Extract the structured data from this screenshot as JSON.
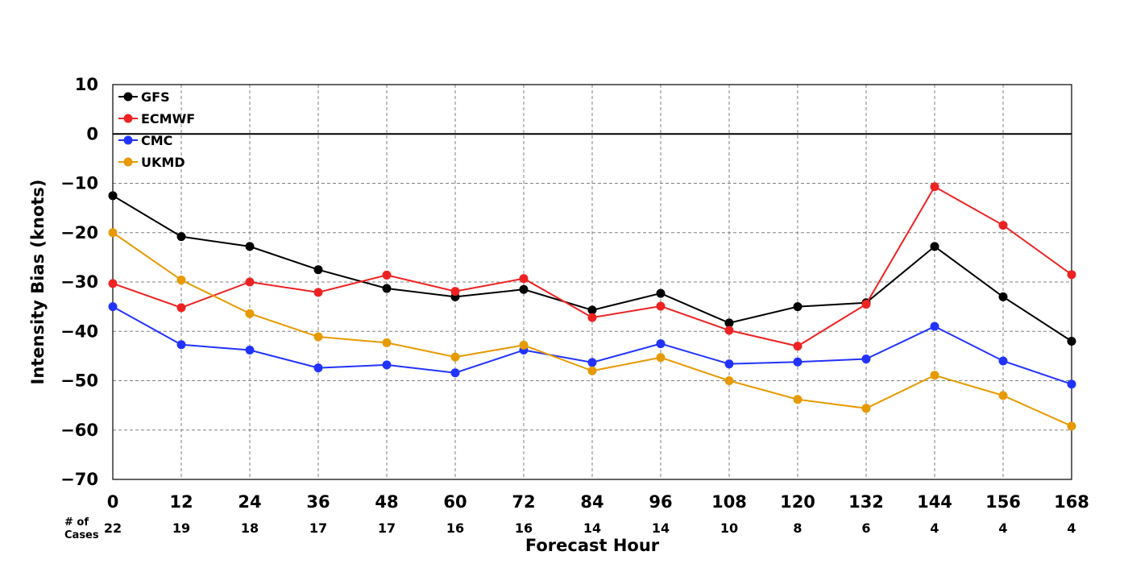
{
  "chart_data": {
    "type": "line",
    "title": "",
    "xlabel": "Forecast Hour",
    "ylabel": "Intensity Bias (knots)",
    "x": [
      0,
      12,
      24,
      36,
      48,
      60,
      72,
      84,
      96,
      108,
      120,
      132,
      144,
      156,
      168
    ],
    "x_tick_labels": [
      "0",
      "12",
      "24",
      "36",
      "48",
      "60",
      "72",
      "84",
      "96",
      "108",
      "120",
      "132",
      "144",
      "156",
      "168"
    ],
    "xlim": [
      0,
      168
    ],
    "ylim": [
      -70,
      10
    ],
    "y_ticks": [
      10,
      0,
      -10,
      -20,
      -30,
      -40,
      -50,
      -60,
      -70
    ],
    "y_tick_labels": [
      "10",
      "0",
      "−10",
      "−20",
      "−30",
      "−40",
      "−50",
      "−60",
      "−70"
    ],
    "grid": true,
    "legend_position": "top-left",
    "cases_label": [
      "# of",
      "Cases"
    ],
    "cases": [
      "22",
      "19",
      "18",
      "17",
      "17",
      "16",
      "16",
      "14",
      "14",
      "10",
      "8",
      "6",
      "4",
      "4",
      "4"
    ],
    "series": [
      {
        "name": "GFS",
        "color": "#000000",
        "values": [
          -12.5,
          -20.8,
          -22.8,
          -27.5,
          -31.3,
          -33.0,
          -31.5,
          -35.7,
          -32.3,
          -38.3,
          -35.0,
          -34.2,
          -22.8,
          -33.0,
          -42.0
        ]
      },
      {
        "name": "ECMWF",
        "color": "#ee2222",
        "values": [
          -30.3,
          -35.2,
          -30.0,
          -32.1,
          -28.6,
          -31.9,
          -29.3,
          -37.2,
          -34.9,
          -39.8,
          -43.0,
          -34.5,
          -10.7,
          -18.5,
          -28.5
        ]
      },
      {
        "name": "CMC",
        "color": "#2233ff",
        "values": [
          -35.0,
          -42.7,
          -43.8,
          -47.4,
          -46.8,
          -48.4,
          -43.8,
          -46.3,
          -42.5,
          -46.6,
          -46.2,
          -45.6,
          -39.0,
          -46.0,
          -50.7
        ]
      },
      {
        "name": "UKMD",
        "color": "#e69a00",
        "values": [
          -20.0,
          -29.6,
          -36.4,
          -41.1,
          -42.3,
          -45.2,
          -42.8,
          -48.0,
          -45.3,
          -50.0,
          -53.8,
          -55.6,
          -48.9,
          -53.0,
          -59.2
        ]
      }
    ]
  }
}
